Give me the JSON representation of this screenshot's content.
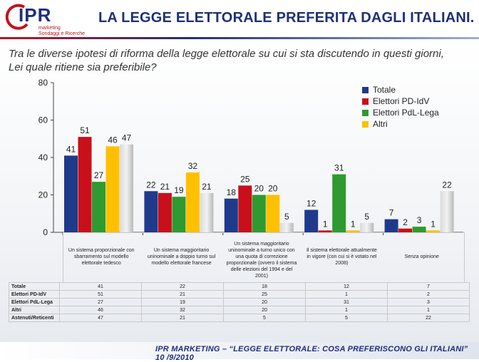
{
  "header": {
    "logo_text": "IPR",
    "logo_sub": "marketing\nSondaggi e Ricerche",
    "title": "LA LEGGE ELETTORALE PREFERITA DAGLI ITALIANI."
  },
  "question": "Tra le diverse ipotesi di riforma della legge elettorale su cui si sta discutendo in questi giorni, Lei quale ritiene sia preferibile?",
  "footer": "IPR MARKETING – “LEGGE ELETTORALE: COSA PREFERISCONO GLI ITALIANI”    10 /9/2010",
  "chart_data": {
    "type": "bar",
    "ylim": [
      0,
      80
    ],
    "yticks": [
      0,
      20,
      40,
      60,
      80
    ],
    "grid": false,
    "legend_position": "top-right",
    "categories": [
      "Un sistema proporzionale con sbarramento sul modello elettorale tedesco",
      "Un sistema maggioritario uninominale a doppio turno sul modello elettorale francese",
      "Un sistema maggioritario uninominale a turno unico con una quota di correzione proporzionale (ovvero il sistema delle elezioni del 1994 e del 2001)",
      "Il sistema elettorale attualmente in vigore (con cui si è votato nel 2008)",
      "Senza opinione"
    ],
    "series": [
      {
        "name": "Totale",
        "color": "#1f3a8a",
        "values": [
          41,
          22,
          18,
          12,
          7
        ],
        "legend": true
      },
      {
        "name": "Elettori  PD-IdV",
        "color": "#c8101a",
        "values": [
          51,
          21,
          25,
          1,
          2
        ],
        "legend": true
      },
      {
        "name": "Elettori PdL-Lega",
        "color": "#2f9a2f",
        "values": [
          27,
          19,
          20,
          31,
          3
        ],
        "legend": true
      },
      {
        "name": "Altri",
        "color": "#ffc000",
        "values": [
          46,
          32,
          20,
          1,
          1
        ],
        "legend": true
      },
      {
        "name": "Astenuti/Reticenti",
        "color": "#c9c9c9",
        "values": [
          47,
          21,
          5,
          5,
          22
        ],
        "legend": false
      }
    ],
    "table_rows": [
      {
        "label": "Totale",
        "values": [
          "41",
          "22",
          "18",
          "12",
          "7"
        ]
      },
      {
        "label": "Elettori  PD-IdV",
        "values": [
          "51",
          "21",
          "25",
          "1",
          "2"
        ]
      },
      {
        "label": "Elettori PdL-Lega",
        "values": [
          "27",
          "19",
          "20",
          "31",
          "3"
        ]
      },
      {
        "label": "Altri",
        "values": [
          "46",
          "32",
          "20",
          "1",
          "1"
        ]
      },
      {
        "label": "Astenuti/Reticenti",
        "values": [
          "47",
          "21",
          "5",
          "5",
          "22"
        ]
      }
    ]
  }
}
